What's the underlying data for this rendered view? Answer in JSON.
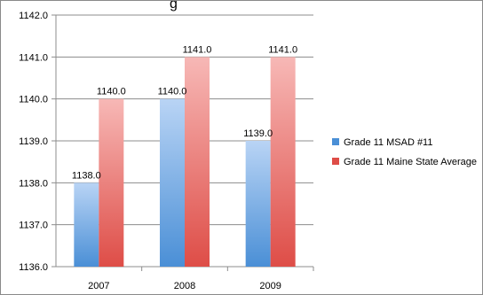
{
  "chart_data": {
    "type": "bar",
    "title_fragment": "g",
    "categories": [
      "2007",
      "2008",
      "2009"
    ],
    "series": [
      {
        "name": "Grade 11 MSAD #11",
        "values": [
          1138.0,
          1140.0,
          1139.0
        ],
        "labels": [
          "1138.0",
          "1140.0",
          "1139.0"
        ],
        "color_top": "#b9d4f5",
        "color_bottom": "#4a8fd6"
      },
      {
        "name": "Grade 11 Maine State Average",
        "values": [
          1140.0,
          1141.0,
          1141.0
        ],
        "labels": [
          "1140.0",
          "1141.0",
          "1141.0"
        ],
        "color_top": "#f7b8b6",
        "color_bottom": "#de4d47"
      }
    ],
    "ylim": [
      1136.0,
      1142.0
    ],
    "yticks": [
      "1136.0",
      "1137.0",
      "1138.0",
      "1139.0",
      "1140.0",
      "1141.0",
      "1142.0"
    ],
    "grid": true,
    "legend_position": "right"
  }
}
